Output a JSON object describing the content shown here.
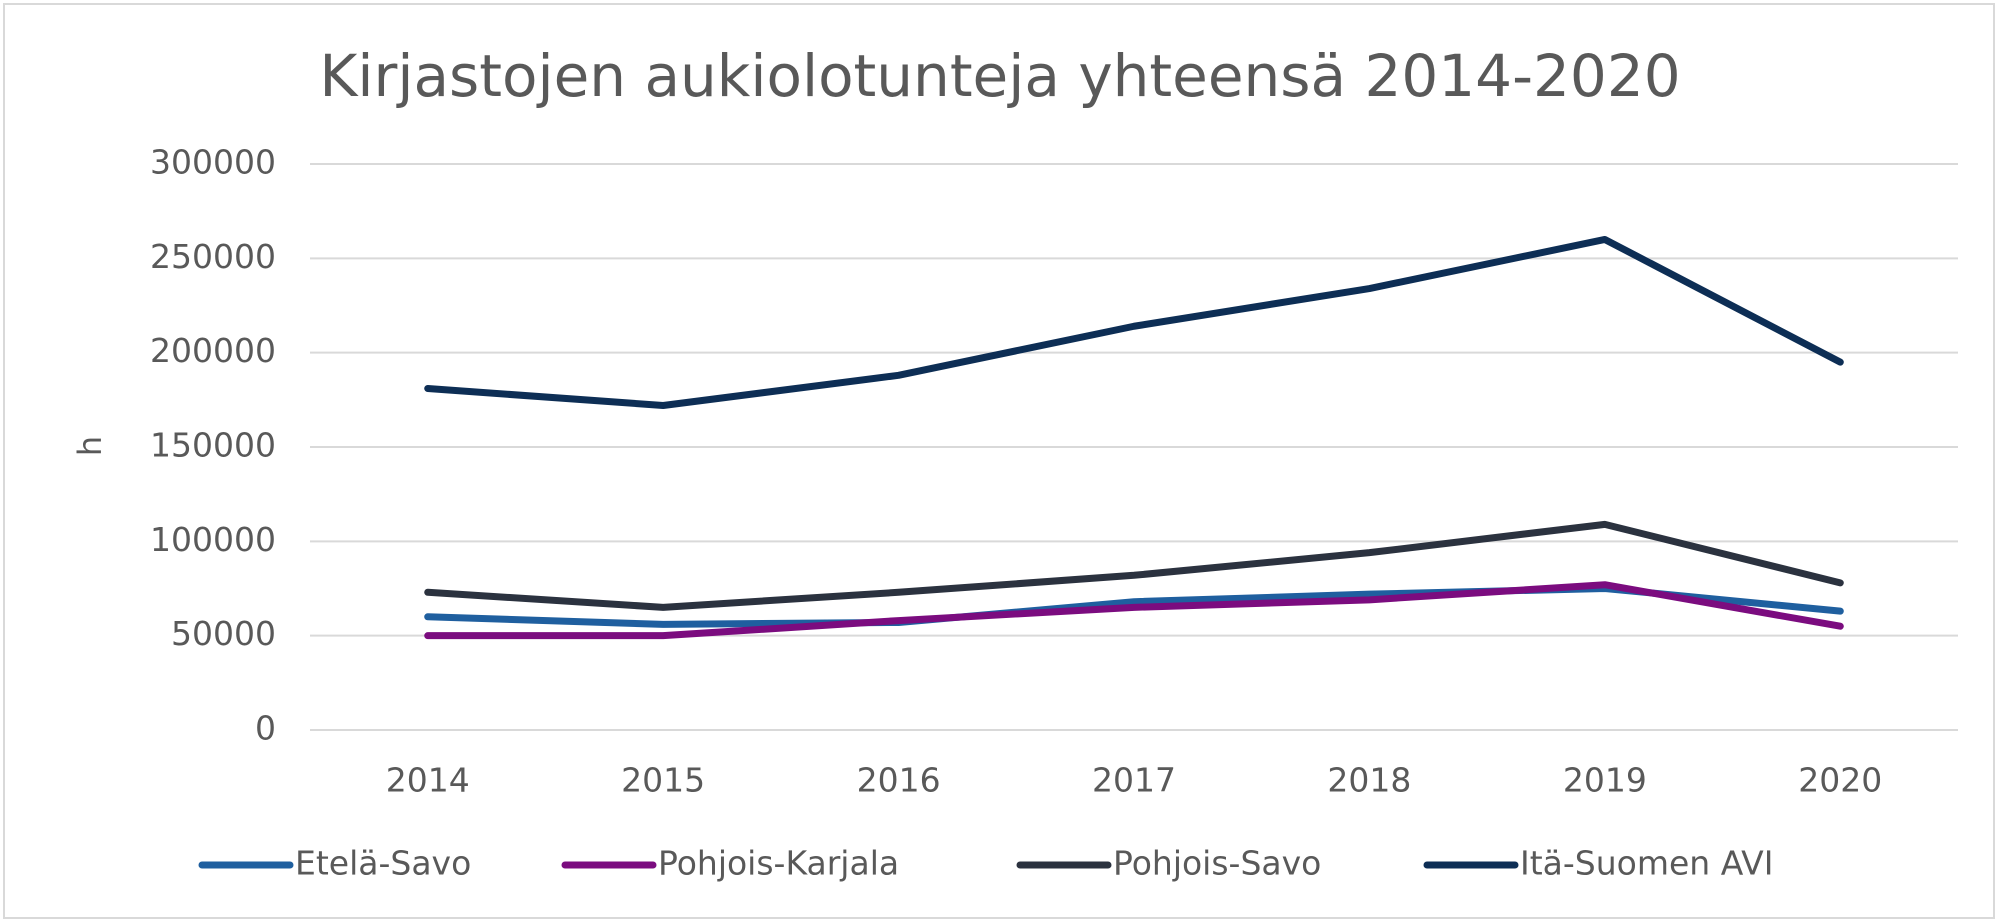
{
  "chart_data": {
    "type": "line",
    "title": "Kirjastojen aukiolotunteja yhteensä 2014-2020",
    "y_label": "h",
    "categories": [
      "2014",
      "2015",
      "2016",
      "2017",
      "2018",
      "2019",
      "2020"
    ],
    "series": [
      {
        "name": "Etelä-Savo",
        "color": "#1f5f9f",
        "values": [
          60000,
          56000,
          57000,
          68000,
          72000,
          75000,
          63000
        ]
      },
      {
        "name": "Pohjois-Karjala",
        "color": "#7b0c7f",
        "values": [
          50000,
          50000,
          58000,
          65000,
          69000,
          77000,
          55000
        ]
      },
      {
        "name": "Pohjois-Savo",
        "color": "#2b323f",
        "values": [
          73000,
          65000,
          73000,
          82000,
          94000,
          109000,
          78000
        ]
      },
      {
        "name": "Itä-Suomen AVI",
        "color": "#0d2e55",
        "values": [
          181000,
          172000,
          188000,
          214000,
          234000,
          260000,
          195000
        ]
      }
    ],
    "ylim": [
      0,
      300000
    ],
    "yticks": [
      0,
      50000,
      100000,
      150000,
      200000,
      250000,
      300000
    ],
    "grid": true,
    "legend": "bottom"
  }
}
